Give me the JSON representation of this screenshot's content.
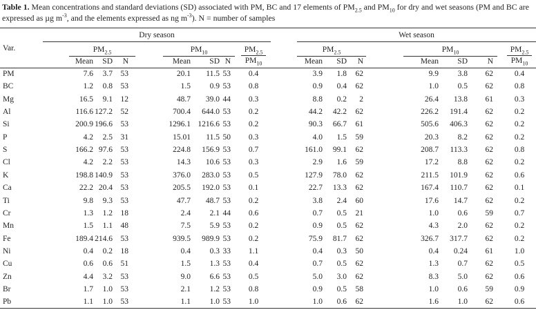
{
  "caption": [
    {
      "text": "Table 1.",
      "bold": true
    },
    {
      "text": " Mean concentrations and standard deviations (SD) associated with PM, BC and 17 elements of PM"
    },
    {
      "text": "2.5",
      "sub": true
    },
    {
      "text": " and PM"
    },
    {
      "text": "10",
      "sub": true
    },
    {
      "text": " for dry and wet seasons (PM and BC are expressed as µg m"
    },
    {
      "text": "-3",
      "sup": true
    },
    {
      "text": ", and the elements expressed as ng m"
    },
    {
      "text": "-3",
      "sup": true
    },
    {
      "text": "). N = number of samples"
    }
  ],
  "header": {
    "var": "Var.",
    "seasons": [
      {
        "name": "Dry season",
        "blocks": [
          {
            "label": {
              "base": "PM",
              "sub": "2.5"
            },
            "columns": [
              "Mean",
              "SD",
              "N"
            ]
          },
          {
            "label": {
              "base": "PM",
              "sub": "10"
            },
            "columns": [
              "Mean",
              "SD",
              "N"
            ]
          }
        ],
        "ratio": {
          "numerator": {
            "base": "PM",
            "sub": "2.5"
          },
          "denominator": {
            "base": "PM",
            "sub": "10"
          }
        }
      },
      {
        "name": "Wet season",
        "blocks": [
          {
            "label": {
              "base": "PM",
              "sub": "2.5"
            },
            "columns": [
              "Mean",
              "SD",
              "N"
            ]
          },
          {
            "label": {
              "base": "PM",
              "sub": "10"
            },
            "columns": [
              "Mean",
              "SD",
              "N"
            ]
          }
        ],
        "ratio": {
          "numerator": {
            "base": "PM",
            "sub": "2.5"
          },
          "denominator": {
            "base": "PM",
            "sub": "10"
          }
        }
      }
    ]
  },
  "rows": [
    {
      "var": "PM",
      "values": [
        "7.6",
        "3.7",
        "53",
        "20.1",
        "11.5",
        "53",
        "0.4",
        "3.9",
        "1.8",
        "62",
        "9.9",
        "3.8",
        "62",
        "0.4"
      ]
    },
    {
      "var": "BC",
      "values": [
        "1.2",
        "0.8",
        "53",
        "1.5",
        "0.9",
        "53",
        "0.8",
        "0.9",
        "0.4",
        "62",
        "1.0",
        "0.5",
        "62",
        "0.8"
      ]
    },
    {
      "var": "Mg",
      "values": [
        "16.5",
        "9.1",
        "12",
        "48.7",
        "39.0",
        "44",
        "0.3",
        "8.8",
        "0.2",
        "2",
        "26.4",
        "13.8",
        "61",
        "0.3"
      ]
    },
    {
      "var": "Al",
      "values": [
        "116.6",
        "127.2",
        "52",
        "700.4",
        "644.0",
        "53",
        "0.2",
        "44.2",
        "42.2",
        "62",
        "226.2",
        "191.4",
        "62",
        "0.2"
      ]
    },
    {
      "var": "Si",
      "values": [
        "200.9",
        "196.6",
        "53",
        "1296.1",
        "1216.6",
        "53",
        "0.2",
        "90.3",
        "66.7",
        "61",
        "505.6",
        "406.3",
        "62",
        "0.2"
      ]
    },
    {
      "var": "P",
      "values": [
        "4.2",
        "2.5",
        "31",
        "15.01",
        "11.5",
        "50",
        "0.3",
        "4.0",
        "1.5",
        "59",
        "20.3",
        "8.2",
        "62",
        "0.2"
      ]
    },
    {
      "var": "S",
      "values": [
        "166.2",
        "97.6",
        "53",
        "224.8",
        "156.9",
        "53",
        "0.7",
        "161.0",
        "99.1",
        "62",
        "208.7",
        "113.3",
        "62",
        "0.8"
      ]
    },
    {
      "var": "Cl",
      "values": [
        "4.2",
        "2.2",
        "53",
        "14.3",
        "10.6",
        "53",
        "0.3",
        "2.9",
        "1.6",
        "59",
        "17.2",
        "8.8",
        "62",
        "0.2"
      ]
    },
    {
      "var": "K",
      "values": [
        "198.8",
        "140.9",
        "53",
        "376.0",
        "283.0",
        "53",
        "0.5",
        "127.9",
        "78.0",
        "62",
        "211.5",
        "101.9",
        "62",
        "0.6"
      ]
    },
    {
      "var": "Ca",
      "values": [
        "22.2",
        "20.4",
        "53",
        "205.5",
        "192.0",
        "53",
        "0.1",
        "22.7",
        "13.3",
        "62",
        "167.4",
        "110.7",
        "62",
        "0.1"
      ]
    },
    {
      "var": "Ti",
      "values": [
        "9.8",
        "9.3",
        "53",
        "47.7",
        "48.7",
        "53",
        "0.2",
        "3.8",
        "2.4",
        "60",
        "17.6",
        "14.7",
        "62",
        "0.2"
      ]
    },
    {
      "var": "Cr",
      "values": [
        "1.3",
        "1.2",
        "18",
        "2.4",
        "2.1",
        "44",
        "0.6",
        "0.7",
        "0.5",
        "21",
        "1.0",
        "0.6",
        "59",
        "0.7"
      ]
    },
    {
      "var": "Mn",
      "values": [
        "1.5",
        "1.1",
        "48",
        "7.5",
        "5.9",
        "53",
        "0.2",
        "0.9",
        "0.5",
        "62",
        "4.3",
        "2.0",
        "62",
        "0.2"
      ]
    },
    {
      "var": "Fe",
      "values": [
        "189.4",
        "214.6",
        "53",
        "939.5",
        "989.9",
        "53",
        "0.2",
        "75.9",
        "81.7",
        "62",
        "326.7",
        "317.7",
        "62",
        "0.2"
      ]
    },
    {
      "var": "Ni",
      "values": [
        "0.4",
        "0.2",
        "18",
        "0.4",
        "0.3",
        "33",
        "1.1",
        "0.4",
        "0.3",
        "50",
        "0.4",
        "0.24",
        "61",
        "1.0"
      ]
    },
    {
      "var": "Cu",
      "values": [
        "0.6",
        "0.6",
        "51",
        "1.5",
        "1.3",
        "53",
        "0.4",
        "0.7",
        "0.5",
        "62",
        "1.3",
        "0.7",
        "62",
        "0.5"
      ]
    },
    {
      "var": "Zn",
      "values": [
        "4.4",
        "3.2",
        "53",
        "9.0",
        "6.6",
        "53",
        "0.5",
        "5.0",
        "3.0",
        "62",
        "8.3",
        "5.0",
        "62",
        "0.6"
      ]
    },
    {
      "var": "Br",
      "values": [
        "1.7",
        "1.0",
        "53",
        "2.1",
        "1.2",
        "53",
        "0.8",
        "0.9",
        "0.5",
        "58",
        "1.0",
        "0.6",
        "59",
        "0.9"
      ]
    },
    {
      "var": "Pb",
      "values": [
        "1.1",
        "1.0",
        "53",
        "1.1",
        "1.0",
        "53",
        "1.0",
        "1.0",
        "0.6",
        "62",
        "1.6",
        "1.0",
        "62",
        "0.6"
      ]
    }
  ]
}
